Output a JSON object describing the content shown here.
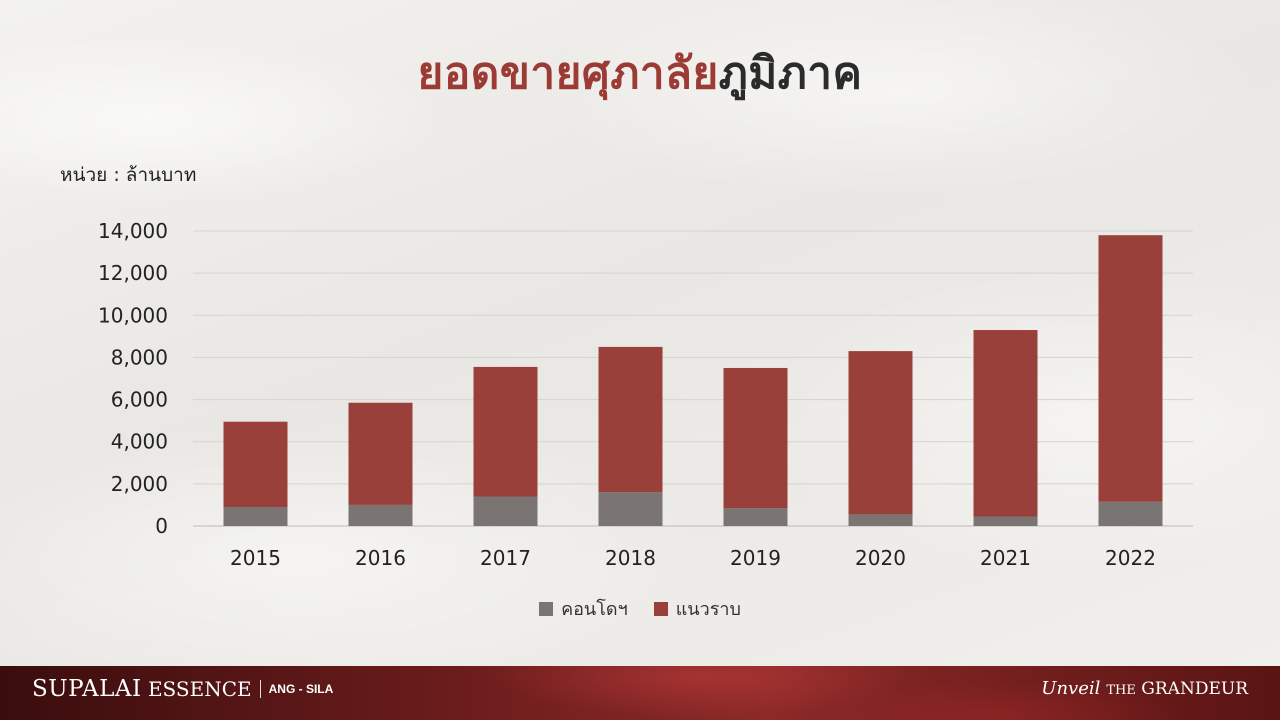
{
  "title": {
    "part1": "ยอดขายศุภาลัย",
    "part2": "ภูมิภาค"
  },
  "unit_label": "หน่วย : ล้านบาท",
  "colors": {
    "condo": "#7a7472",
    "lowrise": "#9a403b",
    "title_accent": "#9c3b36"
  },
  "legend": [
    "คอนโดฯ",
    "แนวราบ"
  ],
  "footer": {
    "brand_main": "SUPALAI",
    "brand_sub": "ESSENCE",
    "location": "ANG - SILA",
    "tagline_script": "Unveil",
    "tagline_the": "THE",
    "tagline_main": "GRANDEUR"
  },
  "chart_data": {
    "type": "bar",
    "stacked": true,
    "categories": [
      "2015",
      "2016",
      "2017",
      "2018",
      "2019",
      "2020",
      "2021",
      "2022"
    ],
    "series": [
      {
        "name": "คอนโดฯ",
        "values": [
          900,
          1000,
          1400,
          1600,
          850,
          550,
          450,
          1150
        ]
      },
      {
        "name": "แนวราบ",
        "values": [
          4050,
          4850,
          6150,
          6900,
          6650,
          7750,
          8850,
          12650
        ]
      }
    ],
    "yticks": [
      "0",
      "2,000",
      "4,000",
      "6,000",
      "8,000",
      "10,000",
      "12,000",
      "14,000"
    ],
    "ylim": [
      0,
      14000
    ],
    "grid": true,
    "legend_position": "bottom"
  }
}
